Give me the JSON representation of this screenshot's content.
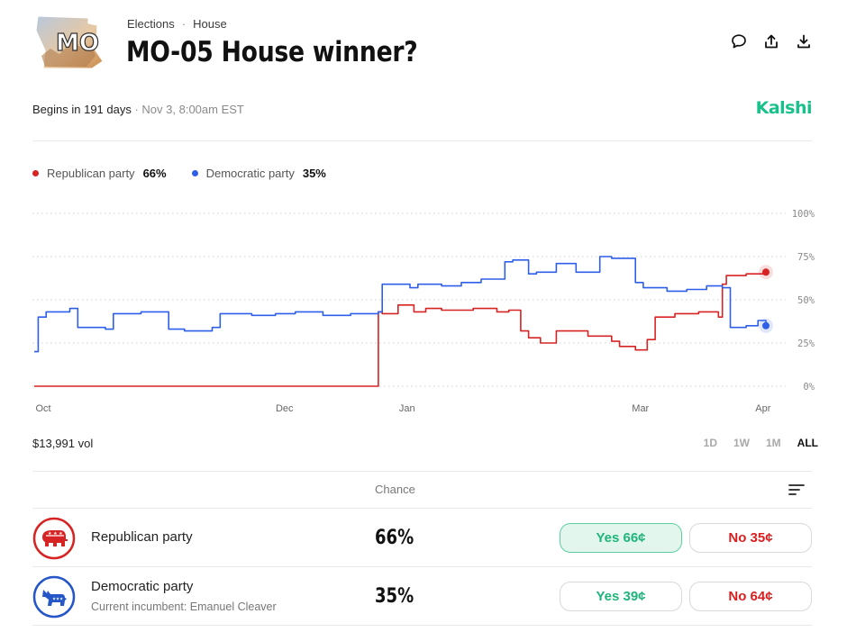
{
  "breadcrumb": {
    "category": "Elections",
    "subcategory": "House"
  },
  "market": {
    "title": "MO-05 House winner?",
    "thumb_label": "MO",
    "begins": "Begins in 191 days",
    "date": "Nov 3, 8:00am EST",
    "brand": "Kalshi",
    "volume": "$13,991 vol"
  },
  "header_icons": [
    "comment-icon",
    "share-icon",
    "download-icon"
  ],
  "legend": [
    {
      "label": "Republican party",
      "value": "66%",
      "color": "#d62323"
    },
    {
      "label": "Democratic party",
      "value": "35%",
      "color": "#2f5fe8"
    }
  ],
  "time_ranges": [
    "1D",
    "1W",
    "1M",
    "ALL"
  ],
  "active_range": "ALL",
  "table": {
    "chance_header": "Chance",
    "rows": [
      {
        "name": "Republican party",
        "subtitle": "",
        "chance": "66%",
        "yes": "Yes 66¢",
        "no": "No 35¢",
        "color": "#d62323",
        "icon": "republican-elephant-icon"
      },
      {
        "name": "Democratic party",
        "subtitle": "Current incumbent: Emanuel Cleaver",
        "chance": "35%",
        "yes": "Yes 39¢",
        "no": "No 64¢",
        "color": "#2456c7",
        "icon": "democratic-donkey-icon"
      }
    ]
  },
  "chart_data": {
    "type": "line",
    "x_ticks": [
      "Oct",
      "Dec",
      "Jan",
      "Mar",
      "Apr"
    ],
    "y_ticks": [
      "100%",
      "75%",
      "50%",
      "25%",
      "0%"
    ],
    "ylim": [
      0,
      100
    ],
    "grid": true,
    "series": [
      {
        "name": "Republican party",
        "color": "#d62323",
        "x": [
          "2024-10-01",
          "2024-12-27",
          "2024-12-27",
          "2024-12-28",
          "2025-01-01",
          "2025-01-05",
          "2025-01-08",
          "2025-01-12",
          "2025-01-20",
          "2025-01-26",
          "2025-01-29",
          "2025-02-01",
          "2025-02-03",
          "2025-02-06",
          "2025-02-10",
          "2025-02-18",
          "2025-02-24",
          "2025-02-26",
          "2025-03-02",
          "2025-03-05",
          "2025-03-07",
          "2025-03-12",
          "2025-03-18",
          "2025-03-23",
          "2025-03-24",
          "2025-03-25",
          "2025-03-30",
          "2025-04-04"
        ],
        "y": [
          0,
          0,
          43,
          42,
          47,
          43,
          45,
          44,
          45,
          43,
          44,
          32,
          28,
          25,
          32,
          29,
          26,
          23,
          21,
          27,
          40,
          42,
          43,
          40,
          59,
          64,
          65,
          66
        ]
      },
      {
        "name": "Democratic party",
        "color": "#2f5fe8",
        "x": [
          "2024-10-01",
          "2024-10-02",
          "2024-10-04",
          "2024-10-10",
          "2024-10-12",
          "2024-10-19",
          "2024-10-21",
          "2024-10-28",
          "2024-11-04",
          "2024-11-08",
          "2024-11-15",
          "2024-11-17",
          "2024-11-25",
          "2024-12-01",
          "2024-12-06",
          "2024-12-13",
          "2024-12-20",
          "2024-12-27",
          "2024-12-28",
          "2025-01-04",
          "2025-01-06",
          "2025-01-12",
          "2025-01-17",
          "2025-01-22",
          "2025-01-28",
          "2025-01-30",
          "2025-02-03",
          "2025-02-05",
          "2025-02-10",
          "2025-02-15",
          "2025-02-21",
          "2025-02-24",
          "2025-03-02",
          "2025-03-04",
          "2025-03-10",
          "2025-03-15",
          "2025-03-20",
          "2025-03-24",
          "2025-03-26",
          "2025-03-30",
          "2025-04-02",
          "2025-04-04"
        ],
        "y": [
          20,
          40,
          43,
          45,
          34,
          33,
          42,
          43,
          33,
          32,
          34,
          42,
          41,
          42,
          43,
          41,
          42,
          43,
          59,
          57,
          59,
          58,
          60,
          62,
          72,
          73,
          65,
          66,
          71,
          66,
          75,
          74,
          60,
          57,
          55,
          56,
          58,
          57,
          34,
          35,
          38,
          35
        ]
      }
    ]
  }
}
